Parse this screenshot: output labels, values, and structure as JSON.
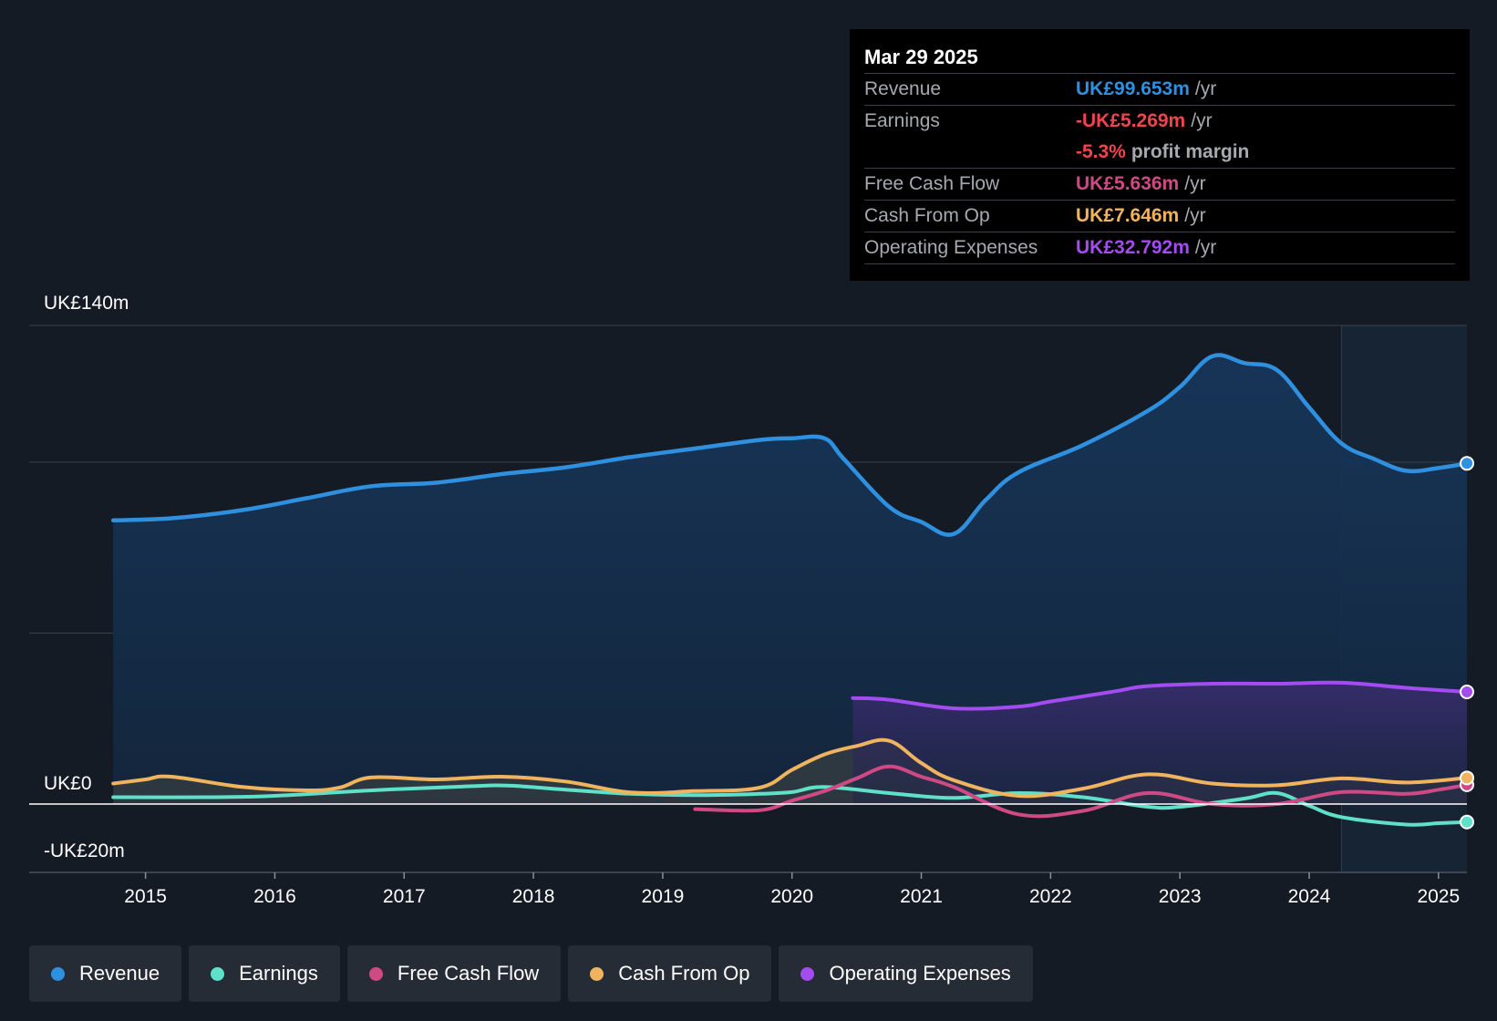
{
  "tooltip": {
    "date": "Mar 29 2025",
    "rows": [
      {
        "label": "Revenue",
        "value": "UK£99.653m",
        "unit": "/yr",
        "color": "#2f90e0"
      },
      {
        "label": "Earnings",
        "value": "-UK£5.269m",
        "unit": "/yr",
        "color": "#f0454f"
      },
      {
        "label": "",
        "value": "-5.3%",
        "unit": "profit margin",
        "color": "#f0454f"
      },
      {
        "label": "Free Cash Flow",
        "value": "UK£5.636m",
        "unit": "/yr",
        "color": "#cf4a84"
      },
      {
        "label": "Cash From Op",
        "value": "UK£7.646m",
        "unit": "/yr",
        "color": "#f0b45e"
      },
      {
        "label": "Operating Expenses",
        "value": "UK£32.792m",
        "unit": "/yr",
        "color": "#a34cf0"
      }
    ]
  },
  "legend": [
    {
      "label": "Revenue",
      "color": "#2f90e0"
    },
    {
      "label": "Earnings",
      "color": "#5fe0c8"
    },
    {
      "label": "Free Cash Flow",
      "color": "#cf4a84"
    },
    {
      "label": "Cash From Op",
      "color": "#f0b45e"
    },
    {
      "label": "Operating Expenses",
      "color": "#a34cf0"
    }
  ],
  "chart_data": {
    "type": "line",
    "y_labels": {
      "top": "UK£140m",
      "zero": "UK£0",
      "bottom": "-UK£20m"
    },
    "ylim": [
      -20,
      140
    ],
    "xlim": [
      2014.1,
      2025.22
    ],
    "forecast_start": 2024.25,
    "x_ticks": [
      {
        "year": 2015,
        "label": "2015"
      },
      {
        "year": 2016,
        "label": "2016"
      },
      {
        "year": 2017,
        "label": "2017"
      },
      {
        "year": 2018,
        "label": "2018"
      },
      {
        "year": 2019,
        "label": "2019"
      },
      {
        "year": 2020,
        "label": "2020"
      },
      {
        "year": 2021,
        "label": "2021"
      },
      {
        "year": 2022,
        "label": "2022"
      },
      {
        "year": 2023,
        "label": "2023"
      },
      {
        "year": 2024,
        "label": "2024"
      },
      {
        "year": 2025,
        "label": "2025"
      }
    ],
    "series": [
      {
        "name": "Revenue",
        "color": "#2f90e0",
        "fill": "#17365a",
        "end_marker": true,
        "points": [
          [
            2014.75,
            83
          ],
          [
            2015.2,
            83.6
          ],
          [
            2015.75,
            86
          ],
          [
            2016.25,
            89.5
          ],
          [
            2016.75,
            93
          ],
          [
            2017.25,
            94
          ],
          [
            2017.75,
            96.5
          ],
          [
            2018.25,
            98.5
          ],
          [
            2018.75,
            101.5
          ],
          [
            2019.25,
            104
          ],
          [
            2019.75,
            106.5
          ],
          [
            2020.0,
            107
          ],
          [
            2020.25,
            107
          ],
          [
            2020.4,
            101
          ],
          [
            2020.75,
            87
          ],
          [
            2021.0,
            82.5
          ],
          [
            2021.25,
            79
          ],
          [
            2021.5,
            89
          ],
          [
            2021.75,
            97
          ],
          [
            2022.25,
            105
          ],
          [
            2022.75,
            115
          ],
          [
            2023.0,
            122
          ],
          [
            2023.25,
            131
          ],
          [
            2023.5,
            129
          ],
          [
            2023.75,
            127
          ],
          [
            2024.0,
            116
          ],
          [
            2024.25,
            105.5
          ],
          [
            2024.5,
            101
          ],
          [
            2024.75,
            97.5
          ],
          [
            2025.0,
            98.3
          ],
          [
            2025.22,
            99.653
          ]
        ]
      },
      {
        "name": "Earnings",
        "color": "#5fe0c8",
        "end_marker": true,
        "points": [
          [
            2014.75,
            2
          ],
          [
            2015.5,
            2
          ],
          [
            2016.0,
            2.4
          ],
          [
            2016.75,
            4
          ],
          [
            2017.5,
            5.2
          ],
          [
            2017.8,
            5.4
          ],
          [
            2018.25,
            4.2
          ],
          [
            2018.75,
            3
          ],
          [
            2019.25,
            2.6
          ],
          [
            2019.75,
            3
          ],
          [
            2020.0,
            3.5
          ],
          [
            2020.25,
            5
          ],
          [
            2020.75,
            3.2
          ],
          [
            2021.25,
            1.8
          ],
          [
            2021.75,
            3.2
          ],
          [
            2022.25,
            2
          ],
          [
            2022.75,
            -0.8
          ],
          [
            2023.0,
            -0.8
          ],
          [
            2023.5,
            1.6
          ],
          [
            2023.75,
            3.2
          ],
          [
            2024.0,
            -0.5
          ],
          [
            2024.25,
            -3.8
          ],
          [
            2024.75,
            -6
          ],
          [
            2025.0,
            -5.6
          ],
          [
            2025.22,
            -5.269
          ]
        ]
      },
      {
        "name": "Free Cash Flow",
        "color": "#cf4a84",
        "end_marker": true,
        "points": [
          [
            2019.25,
            -1.5
          ],
          [
            2019.75,
            -1.8
          ],
          [
            2020.0,
            1
          ],
          [
            2020.25,
            3.8
          ],
          [
            2020.5,
            7.5
          ],
          [
            2020.75,
            11
          ],
          [
            2021.0,
            8
          ],
          [
            2021.25,
            5
          ],
          [
            2021.75,
            -3
          ],
          [
            2022.25,
            -2
          ],
          [
            2022.75,
            3.2
          ],
          [
            2023.25,
            0
          ],
          [
            2023.75,
            0
          ],
          [
            2024.25,
            3.5
          ],
          [
            2024.75,
            3
          ],
          [
            2025.0,
            4.2
          ],
          [
            2025.22,
            5.636
          ]
        ]
      },
      {
        "name": "Cash From Op",
        "color": "#f0b45e",
        "end_marker": true,
        "points": [
          [
            2014.75,
            6
          ],
          [
            2015.0,
            7.2
          ],
          [
            2015.2,
            8
          ],
          [
            2015.75,
            5
          ],
          [
            2016.25,
            4
          ],
          [
            2016.5,
            4.8
          ],
          [
            2016.75,
            7.8
          ],
          [
            2017.25,
            7.2
          ],
          [
            2017.75,
            8
          ],
          [
            2018.25,
            6.6
          ],
          [
            2018.75,
            3.4
          ],
          [
            2019.25,
            3.8
          ],
          [
            2019.75,
            4.8
          ],
          [
            2020.0,
            10
          ],
          [
            2020.25,
            14.5
          ],
          [
            2020.5,
            17
          ],
          [
            2020.75,
            18.5
          ],
          [
            2021.0,
            12
          ],
          [
            2021.25,
            7
          ],
          [
            2021.75,
            2.4
          ],
          [
            2022.25,
            4.5
          ],
          [
            2022.75,
            8.7
          ],
          [
            2023.25,
            6
          ],
          [
            2023.75,
            5.5
          ],
          [
            2024.25,
            7.5
          ],
          [
            2024.75,
            6.3
          ],
          [
            2025.22,
            7.646
          ]
        ]
      },
      {
        "name": "Operating Expenses",
        "color": "#a34cf0",
        "fill": "#3a2e66",
        "end_marker": true,
        "points": [
          [
            2020.47,
            31
          ],
          [
            2020.75,
            30.5
          ],
          [
            2021.25,
            28
          ],
          [
            2021.75,
            28.5
          ],
          [
            2022.0,
            30
          ],
          [
            2022.5,
            33
          ],
          [
            2022.75,
            34.5
          ],
          [
            2023.25,
            35.2
          ],
          [
            2023.75,
            35.2
          ],
          [
            2024.25,
            35.5
          ],
          [
            2024.75,
            34
          ],
          [
            2025.22,
            32.792
          ]
        ]
      }
    ]
  }
}
